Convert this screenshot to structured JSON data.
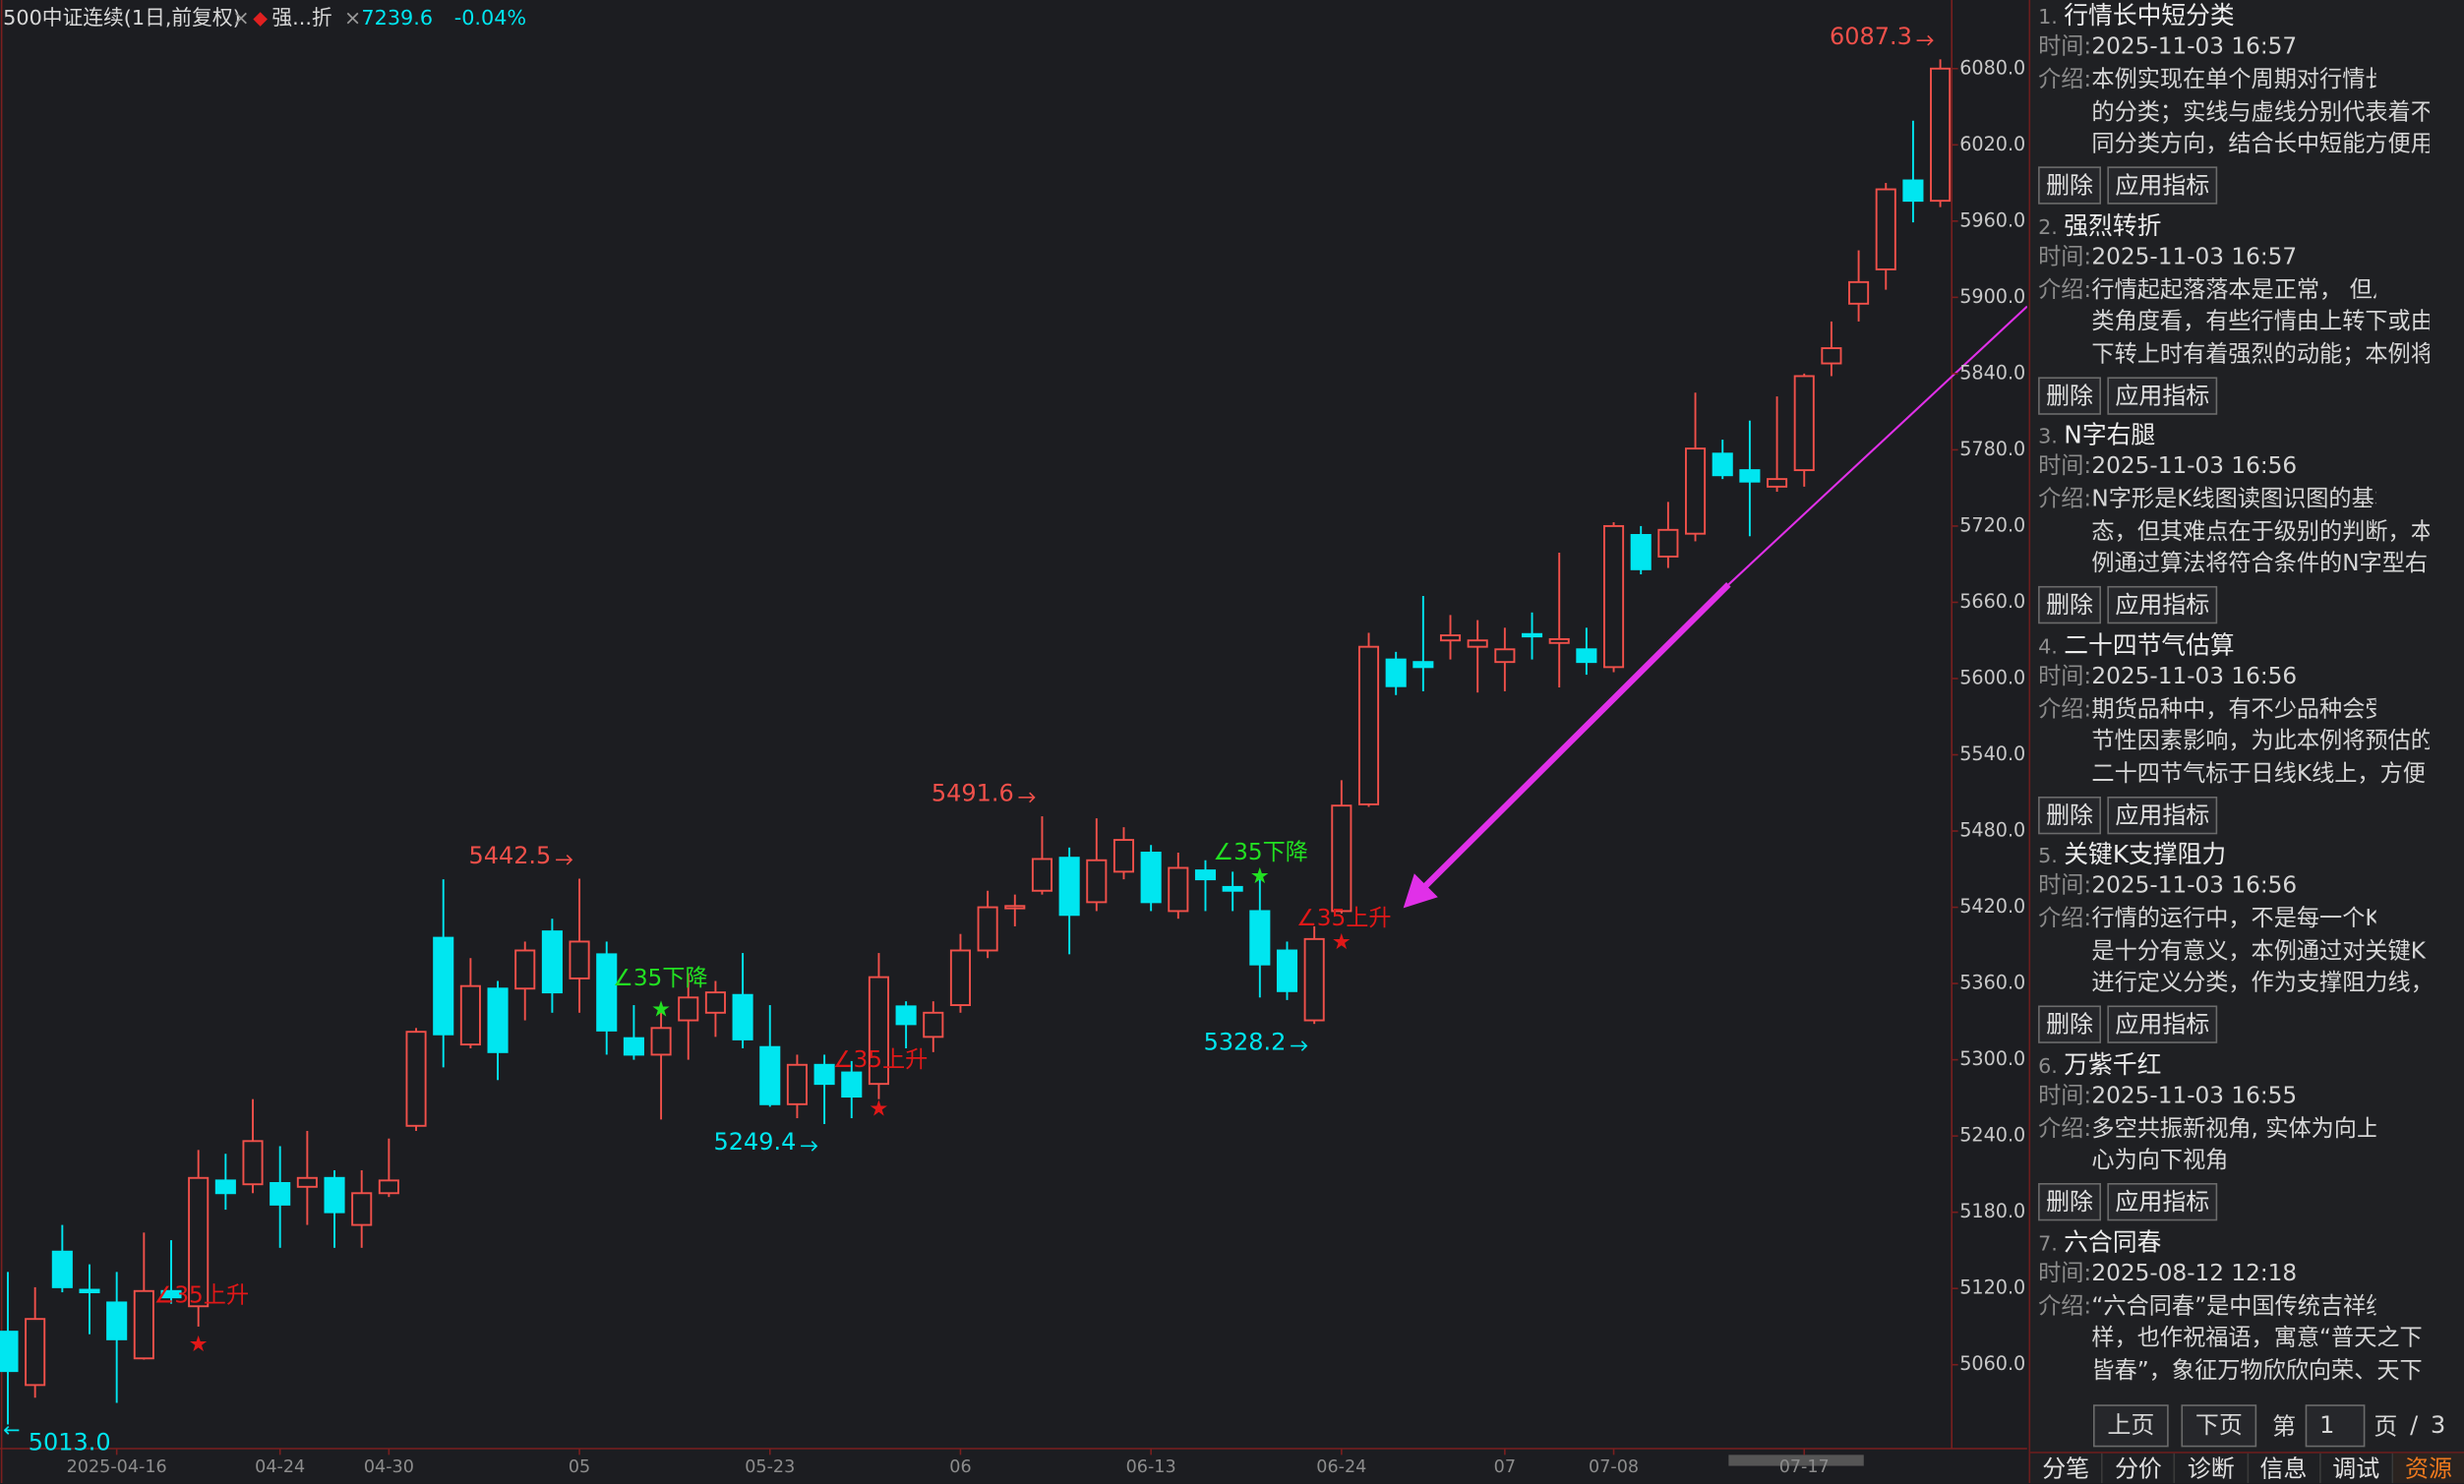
{
  "header": {
    "title": "500中证连续(1日,前复权)",
    "indicator": "强...折",
    "price": "7239.6",
    "change": "-0.04%"
  },
  "chart_data": {
    "type": "candlestick",
    "categories": [
      null,
      null,
      null,
      null,
      "2025-04-16",
      null,
      null,
      null,
      null,
      null,
      "04-24",
      null,
      null,
      null,
      "04-30",
      null,
      null,
      null,
      null,
      null,
      null,
      "05",
      null,
      null,
      null,
      null,
      null,
      null,
      "05-23",
      null,
      null,
      null,
      null,
      null,
      null,
      "06",
      null,
      null,
      null,
      null,
      null,
      null,
      "06-13",
      null,
      null,
      null,
      null,
      null,
      null,
      "06-24",
      null,
      null,
      null,
      null,
      null,
      "07",
      null,
      null,
      null,
      "07-08",
      null,
      null,
      null,
      null,
      null,
      null,
      "07-17",
      null,
      null,
      null,
      null,
      null
    ],
    "open": [
      5086,
      5044,
      5149,
      5119,
      5109,
      5065,
      5118,
      5106,
      5205,
      5202,
      5203,
      5200,
      5207,
      5170,
      5195,
      5248,
      5396,
      5312,
      5356,
      5356,
      5401,
      5364,
      5383,
      5317,
      5304,
      5331,
      5337,
      5351,
      5310,
      5265,
      5296,
      5290,
      5281,
      5342,
      5318,
      5343,
      5386,
      5420,
      5433,
      5459,
      5424,
      5448,
      5463,
      5417,
      5449,
      5436,
      5417,
      5386,
      5331,
      5417,
      5501,
      5615,
      5613,
      5630,
      5625,
      5613,
      5635,
      5628,
      5623,
      5609,
      5713,
      5696,
      5714,
      5777,
      5764,
      5751,
      5764,
      5848,
      5895,
      5922,
      5992,
      5976
    ],
    "high": [
      5133,
      5121,
      5170,
      5139,
      5133,
      5164,
      5158,
      5229,
      5226,
      5269,
      5232,
      5244,
      5213,
      5213,
      5238,
      5325,
      5442,
      5380,
      5362,
      5393,
      5411,
      5442.5,
      5393,
      5343,
      5343,
      5368,
      5362,
      5384,
      5343,
      5304,
      5304,
      5299,
      5384,
      5346,
      5346,
      5399,
      5433,
      5430,
      5491.6,
      5467,
      5490,
      5483,
      5469,
      5463,
      5457,
      5448,
      5445,
      5393,
      5405,
      5520,
      5636,
      5621,
      5665,
      5650,
      5646,
      5640,
      5652,
      5699,
      5640,
      5723,
      5720,
      5739,
      5825,
      5788,
      5803,
      5822,
      5840,
      5881,
      5937,
      5990,
      6039,
      6087.3
    ],
    "low": [
      5013,
      5034,
      5117,
      5084,
      5030,
      5064,
      5108,
      5090,
      5182,
      5195,
      5152,
      5170,
      5152,
      5152,
      5192,
      5244,
      5294,
      5309,
      5284,
      5331,
      5337,
      5337,
      5304,
      5300,
      5253,
      5300,
      5318,
      5309,
      5263,
      5254,
      5249.4,
      5254,
      5269,
      5309,
      5306,
      5337,
      5380,
      5405,
      5430,
      5383,
      5417,
      5442,
      5417,
      5411,
      5417,
      5417,
      5349,
      5347,
      5328.2,
      5415,
      5499,
      5587,
      5590,
      5615,
      5589,
      5590,
      5615,
      5593,
      5603,
      5605,
      5682,
      5687,
      5708,
      5757,
      5712,
      5747,
      5751,
      5838,
      5881,
      5906,
      5959,
      5971
    ],
    "close": [
      5055,
      5096,
      5121,
      5117,
      5080,
      5118,
      5113,
      5207,
      5195,
      5236,
      5186,
      5207,
      5180,
      5195,
      5205,
      5322,
      5320,
      5358,
      5306,
      5386,
      5353,
      5393,
      5323,
      5304,
      5325,
      5349,
      5353,
      5316,
      5265,
      5296,
      5281,
      5271,
      5365,
      5328,
      5337,
      5386,
      5420,
      5421,
      5458,
      5414,
      5457,
      5473,
      5424,
      5451,
      5442,
      5433,
      5375,
      5354,
      5395,
      5500,
      5625,
      5594,
      5609,
      5634,
      5630,
      5623,
      5634,
      5631,
      5613,
      5720,
      5686,
      5717,
      5781,
      5760,
      5755,
      5757,
      5838,
      5860,
      5912,
      5985,
      5976,
      6080
    ],
    "up_color": "#f0504a",
    "down_color": "#00e6f0",
    "ylim": [
      4994,
      6134
    ],
    "yticks": [
      {
        "value": 5060,
        "label": "5060.0"
      },
      {
        "value": 5120,
        "label": "5120.0"
      },
      {
        "value": 5180,
        "label": "5180.0"
      },
      {
        "value": 5240,
        "label": "5240.0"
      },
      {
        "value": 5300,
        "label": "5300.0"
      },
      {
        "value": 5360,
        "label": "5360.0"
      },
      {
        "value": 5420,
        "label": "5420.0"
      },
      {
        "value": 5480,
        "label": "5480.0"
      },
      {
        "value": 5540,
        "label": "5540.0"
      },
      {
        "value": 5600,
        "label": "5600.0"
      },
      {
        "value": 5660,
        "label": "5660.0"
      },
      {
        "value": 5720,
        "label": "5720.0"
      },
      {
        "value": 5780,
        "label": "5780.0"
      },
      {
        "value": 5840,
        "label": "5840.0"
      },
      {
        "value": 5900,
        "label": "5900.0"
      },
      {
        "value": 5960,
        "label": "5960.0"
      },
      {
        "value": 6020,
        "label": "6020.0"
      },
      {
        "value": 6080,
        "label": "6080.0"
      }
    ],
    "annotations": [
      {
        "value": 6087.3,
        "label": "6087.3"
      },
      {
        "value": 5442.5,
        "label": "5442.5"
      },
      {
        "value": 5491.6,
        "label": "5491.6"
      },
      {
        "value": 5249.4,
        "label": "5249.4"
      },
      {
        "value": 5328.2,
        "label": "5328.2"
      },
      {
        "value": 5013,
        "label": "5013.0"
      }
    ],
    "signals": [
      "∠35上升",
      "∠35上升",
      "∠35上升",
      "∠35下降",
      "∠35下降"
    ]
  },
  "sidebar": {
    "time_label": "时间:",
    "intro_label": "介绍:",
    "delete": "删除",
    "apply": "应用指标",
    "items": [
      {
        "num": "1.",
        "title": "行情长中短分类",
        "time": "2025-11-03 16:57",
        "intro": [
          "本例实现在单个周期对行情长中短",
          "的分类；实线与虚线分别代表着不",
          "同分类方向，结合长中短能方便用"
        ]
      },
      {
        "num": "2.",
        "title": "强烈转折",
        "time": "2025-11-03 16:57",
        "intro": [
          "行情起起落落本是正常， 但从分",
          "类角度看，有些行情由上转下或由",
          "下转上时有着强烈的动能；本例将"
        ]
      },
      {
        "num": "3.",
        "title": "N字右腿",
        "time": "2025-11-03 16:56",
        "intro": [
          "N字形是K线图读图识图的基本形",
          "态，但其难点在于级别的判断，本",
          "例通过算法将符合条件的N字型右"
        ]
      },
      {
        "num": "4.",
        "title": "二十四节气估算",
        "time": "2025-11-03 16:56",
        "intro": [
          "期货品种中，有不少品种会受到季",
          "节性因素影响，为此本例将预估的",
          "二十四节气标于日线K线上，方便"
        ]
      },
      {
        "num": "5.",
        "title": "关键K支撑阻力",
        "time": "2025-11-03 16:56",
        "intro": [
          "行情的运行中，不是每一个K线都",
          "是十分有意义，本例通过对关键K",
          "进行定义分类，作为支撑阻力线，"
        ]
      },
      {
        "num": "6.",
        "title": "万紫千红",
        "time": "2025-11-03 16:55",
        "intro": [
          "多空共振新视角, 实体为向上视角，空",
          "心为向下视角"
        ]
      },
      {
        "num": "7.",
        "title": "六合同春",
        "time": "2025-08-12 12:18",
        "intro": [
          "“六合同春”是中国传统吉祥纹",
          "样，也作祝福语，寓意“普天之下",
          "皆春”，象征万物欣欣向荣、天下"
        ]
      }
    ],
    "pager": {
      "prev": "上页",
      "next": "下页",
      "page_prefix": "第",
      "page": "1",
      "page_suffix": "页",
      "sep": "/",
      "total": "3"
    },
    "tabs": [
      "分笔",
      "分价",
      "诊断",
      "信息",
      "调试",
      "资源"
    ]
  }
}
